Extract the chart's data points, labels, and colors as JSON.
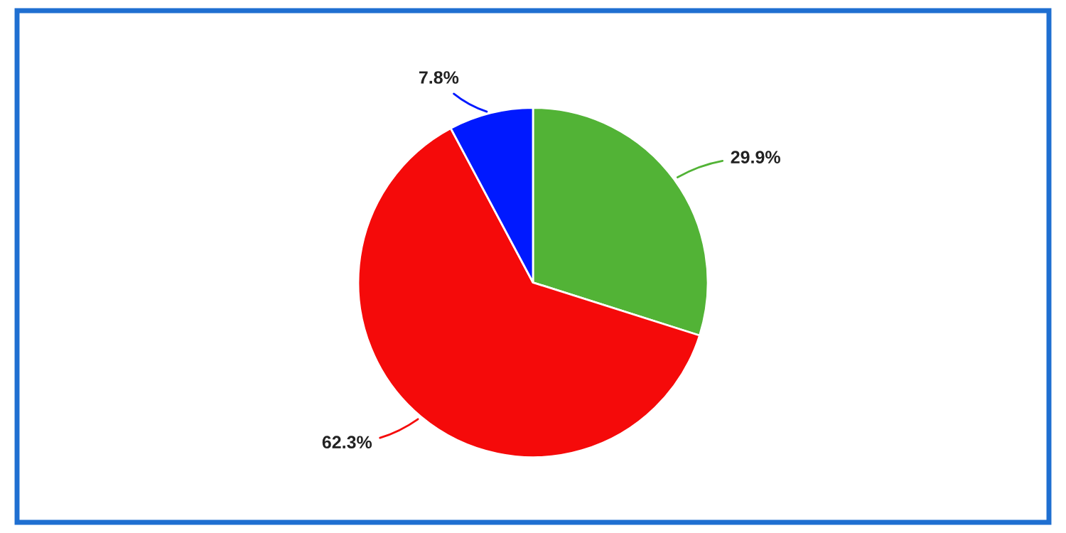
{
  "chart_data": {
    "type": "pie",
    "categories": [
      null,
      null,
      null
    ],
    "values": [
      29.9,
      62.3,
      7.8
    ],
    "colors": [
      "#52b336",
      "#f50a0a",
      "#0019ff"
    ],
    "value_labels": [
      "29.9%",
      "62.3%",
      "7.8%"
    ]
  }
}
